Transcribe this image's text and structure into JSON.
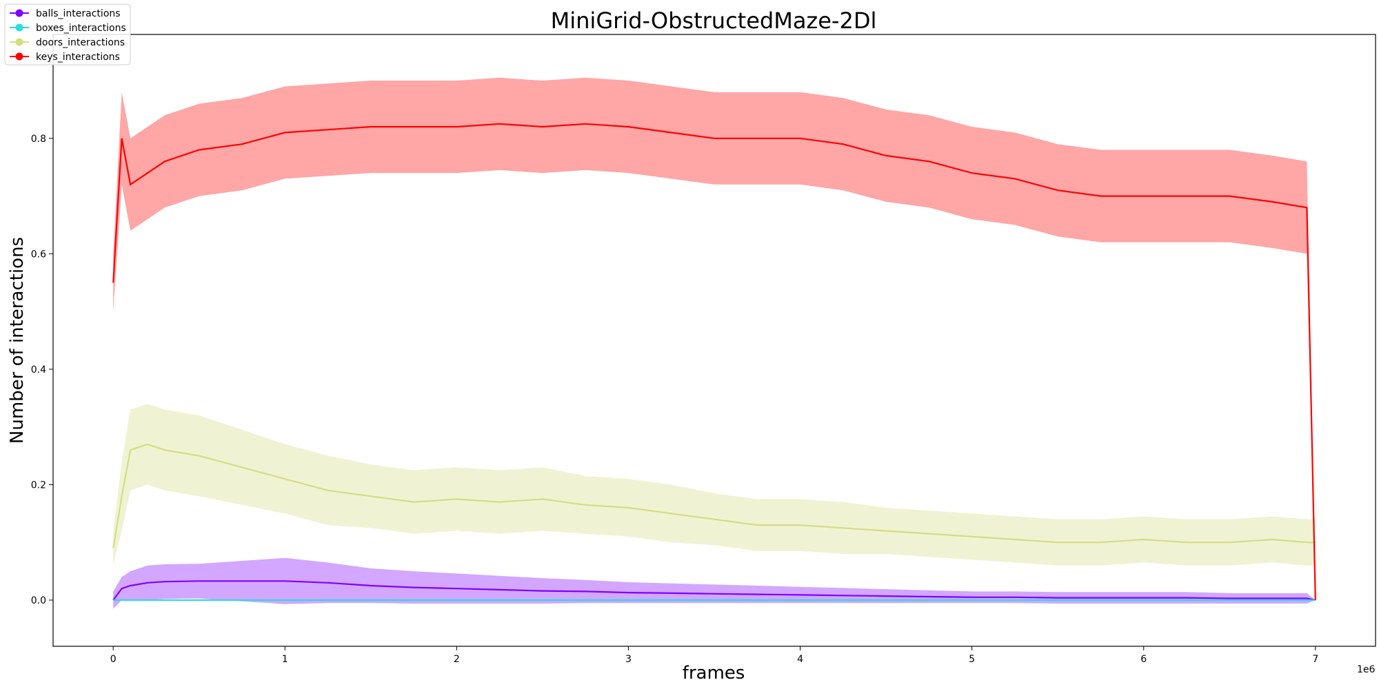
{
  "chart_data": {
    "type": "line",
    "title": "MiniGrid-ObstructedMaze-2Dl",
    "xlabel": "frames",
    "ylabel": "Number of interactions",
    "x_offset_label": "1e6",
    "xlim": [
      -0.35,
      7.35
    ],
    "ylim": [
      -0.08,
      0.98
    ],
    "xticks": [
      0,
      1,
      2,
      3,
      4,
      5,
      6,
      7
    ],
    "xtick_labels": [
      "0",
      "1",
      "2",
      "3",
      "4",
      "5",
      "6",
      "7"
    ],
    "yticks": [
      0.0,
      0.2,
      0.4,
      0.6,
      0.8
    ],
    "ytick_labels": [
      "0.0",
      "0.2",
      "0.4",
      "0.6",
      "0.8"
    ],
    "grid": false,
    "legend_position": "top-left",
    "x": [
      0.0,
      0.05,
      0.1,
      0.2,
      0.3,
      0.5,
      0.75,
      1.0,
      1.25,
      1.5,
      1.75,
      2.0,
      2.25,
      2.5,
      2.75,
      3.0,
      3.25,
      3.5,
      3.75,
      4.0,
      4.25,
      4.5,
      4.75,
      5.0,
      5.25,
      5.5,
      5.75,
      6.0,
      6.25,
      6.5,
      6.75,
      6.95,
      7.0
    ],
    "series": [
      {
        "name": "balls_interactions",
        "color": "#8000ff",
        "values": [
          0.0,
          0.02,
          0.025,
          0.03,
          0.032,
          0.033,
          0.033,
          0.033,
          0.03,
          0.025,
          0.022,
          0.02,
          0.018,
          0.016,
          0.015,
          0.013,
          0.012,
          0.011,
          0.01,
          0.009,
          0.008,
          0.007,
          0.006,
          0.005,
          0.005,
          0.004,
          0.004,
          0.004,
          0.004,
          0.003,
          0.003,
          0.003,
          0.0
        ],
        "band": [
          0.015,
          0.02,
          0.025,
          0.03,
          0.03,
          0.03,
          0.035,
          0.04,
          0.035,
          0.03,
          0.028,
          0.026,
          0.024,
          0.022,
          0.02,
          0.018,
          0.017,
          0.016,
          0.015,
          0.014,
          0.013,
          0.012,
          0.011,
          0.01,
          0.01,
          0.01,
          0.01,
          0.01,
          0.01,
          0.009,
          0.009,
          0.009,
          0.0
        ]
      },
      {
        "name": "boxes_interactions",
        "color": "#2adddd",
        "values": [
          0.0,
          0.0,
          0.0,
          0.0,
          0.0,
          0.0,
          0.0,
          0.0,
          0.0,
          0.0,
          0.0,
          0.0,
          0.0,
          0.0,
          0.0,
          0.0,
          0.0,
          0.0,
          0.0,
          0.0,
          0.0,
          0.0,
          0.0,
          0.0,
          0.0,
          0.0,
          0.0,
          0.0,
          0.0,
          0.0,
          0.0,
          0.0,
          0.0
        ],
        "band": [
          0.0,
          0.0,
          0.0,
          0.0,
          0.0,
          0.0,
          0.0,
          0.0,
          0.0,
          0.0,
          0.0,
          0.0,
          0.0,
          0.0,
          0.0,
          0.0,
          0.0,
          0.0,
          0.0,
          0.0,
          0.0,
          0.0,
          0.0,
          0.0,
          0.0,
          0.0,
          0.0,
          0.0,
          0.0,
          0.0,
          0.0,
          0.0,
          0.0
        ]
      },
      {
        "name": "doors_interactions",
        "color": "#d4dd80",
        "values": [
          0.09,
          0.18,
          0.26,
          0.27,
          0.26,
          0.25,
          0.23,
          0.21,
          0.19,
          0.18,
          0.17,
          0.175,
          0.17,
          0.175,
          0.165,
          0.16,
          0.15,
          0.14,
          0.13,
          0.13,
          0.125,
          0.12,
          0.115,
          0.11,
          0.105,
          0.1,
          0.1,
          0.105,
          0.1,
          0.1,
          0.105,
          0.1,
          0.1
        ],
        "band": [
          0.03,
          0.06,
          0.07,
          0.07,
          0.07,
          0.07,
          0.065,
          0.06,
          0.06,
          0.055,
          0.055,
          0.055,
          0.055,
          0.055,
          0.05,
          0.05,
          0.05,
          0.045,
          0.045,
          0.045,
          0.045,
          0.04,
          0.04,
          0.04,
          0.04,
          0.04,
          0.04,
          0.04,
          0.04,
          0.04,
          0.04,
          0.04,
          0.04
        ]
      },
      {
        "name": "keys_interactions",
        "color": "#ff0000",
        "values": [
          0.55,
          0.8,
          0.72,
          0.74,
          0.76,
          0.78,
          0.79,
          0.81,
          0.815,
          0.82,
          0.82,
          0.82,
          0.825,
          0.82,
          0.825,
          0.82,
          0.81,
          0.8,
          0.8,
          0.8,
          0.79,
          0.77,
          0.76,
          0.74,
          0.73,
          0.71,
          0.7,
          0.7,
          0.7,
          0.7,
          0.69,
          0.68,
          0.0
        ],
        "band": [
          0.05,
          0.08,
          0.08,
          0.08,
          0.08,
          0.08,
          0.08,
          0.08,
          0.08,
          0.08,
          0.08,
          0.08,
          0.08,
          0.08,
          0.08,
          0.08,
          0.08,
          0.08,
          0.08,
          0.08,
          0.08,
          0.08,
          0.08,
          0.08,
          0.08,
          0.08,
          0.08,
          0.08,
          0.08,
          0.08,
          0.08,
          0.08,
          0.0
        ]
      }
    ]
  }
}
